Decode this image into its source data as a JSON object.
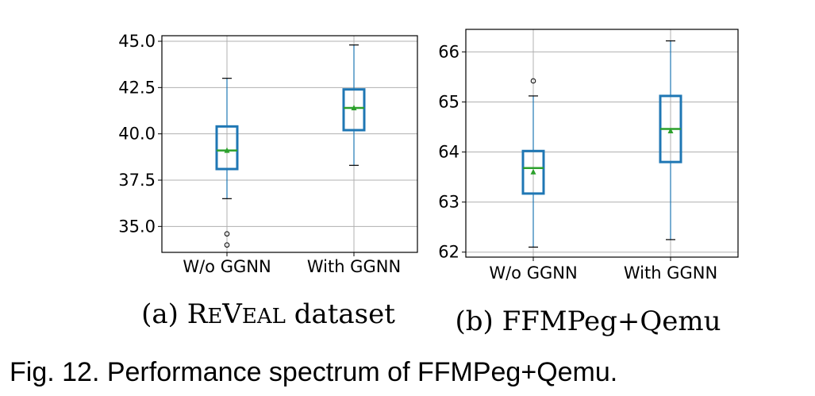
{
  "chart_data": [
    {
      "type": "box",
      "subtitle": "(a) ReVeal dataset",
      "categories": [
        "W/o GGNN",
        "With GGNN"
      ],
      "ylim": [
        33.6,
        45.3
      ],
      "yticks": [
        "35.0",
        "37.5",
        "40.0",
        "42.5",
        "45.0"
      ],
      "yticks_values": [
        35.0,
        37.5,
        40.0,
        42.5,
        45.0
      ],
      "grid": true,
      "boxes": [
        {
          "whisker_low": 36.5,
          "q1": 38.1,
          "median": 39.1,
          "mean": 39.1,
          "q3": 40.4,
          "whisker_high": 43.0,
          "outliers": [
            34.6,
            34.0
          ]
        },
        {
          "whisker_low": 38.3,
          "q1": 40.2,
          "median": 41.4,
          "mean": 41.4,
          "q3": 42.4,
          "whisker_high": 44.8,
          "outliers": []
        }
      ]
    },
    {
      "type": "box",
      "subtitle": "(b) FFMPeg+Qemu",
      "categories": [
        "W/o GGNN",
        "With GGNN"
      ],
      "ylim": [
        61.9,
        66.45
      ],
      "yticks": [
        "62",
        "63",
        "64",
        "65",
        "66"
      ],
      "yticks_values": [
        62,
        63,
        64,
        65,
        66
      ],
      "grid": true,
      "boxes": [
        {
          "whisker_low": 62.1,
          "q1": 63.17,
          "median": 63.68,
          "mean": 63.6,
          "q3": 64.02,
          "whisker_high": 65.12,
          "outliers": [
            65.42
          ]
        },
        {
          "whisker_low": 62.25,
          "q1": 63.8,
          "median": 64.46,
          "mean": 64.42,
          "q3": 65.12,
          "whisker_high": 66.22,
          "outliers": []
        }
      ]
    }
  ],
  "caption": "Fig. 12. Performance spectrum of FFMPeg+Qemu.",
  "colors": {
    "box": "#1f77b4",
    "median": "#2ca02c",
    "mean": "#2ca02c",
    "grid": "#b0b0b0",
    "outlier": "#000000"
  }
}
